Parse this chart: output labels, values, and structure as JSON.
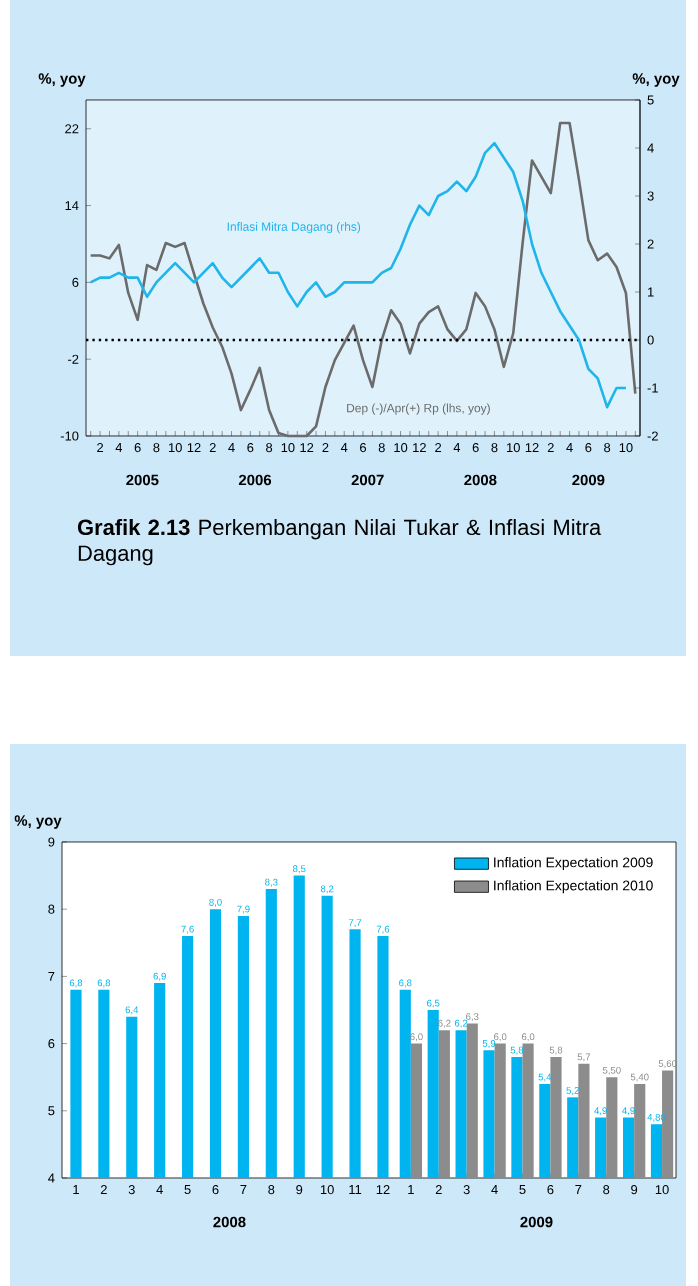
{
  "chart_data": [
    {
      "type": "line",
      "title": "**Grafik 2.13** Perkembangan Nilai Tukar & Inflasi Mitra Dagang",
      "ylabel": "%, yoy",
      "y2label": "%, yoy",
      "categories": [
        null,
        "2",
        null,
        "4",
        null,
        "6",
        null,
        "8",
        null,
        "10",
        null,
        "12",
        null,
        "2",
        null,
        "4",
        null,
        "6",
        null,
        "8",
        null,
        "10",
        null,
        "12",
        null,
        "2",
        null,
        "4",
        null,
        "6",
        null,
        "8",
        null,
        "10",
        null,
        "12",
        null,
        "2",
        null,
        "4",
        null,
        "6",
        null,
        "8",
        null,
        "10",
        null,
        "12",
        null,
        "2",
        null,
        "4",
        null,
        "6",
        null,
        "8",
        null,
        "10",
        null
      ],
      "ylim": [
        -10,
        25
      ],
      "yticks": [
        -10,
        -2,
        6,
        14,
        22
      ],
      "y2lim": [
        -2,
        5
      ],
      "y2ticks": [
        -2,
        -1,
        0,
        1,
        2,
        3,
        4,
        5
      ],
      "series": [
        {
          "name": "Dep (-)/Apr(+) Rp (lhs, yoy)",
          "color": "#6b6b6b",
          "values": [
            8.8,
            8.8,
            8.5,
            9.9,
            4.9,
            2.1,
            7.8,
            7.3,
            10.1,
            9.7,
            10.1,
            6.9,
            3.8,
            1.3,
            -0.7,
            -3.5,
            -7.3,
            -5.2,
            -2.9,
            -7.3,
            -9.7,
            -10,
            -10,
            -10,
            -9.0,
            -4.9,
            -2.1,
            -0.3,
            1.5,
            -2.1,
            -4.9,
            0,
            3.1,
            1.7,
            -1.4,
            1.7,
            2.9,
            3.5,
            1.1,
            -0.1,
            1.1,
            4.9,
            3.5,
            1.1,
            -2.8,
            0.7,
            10.1,
            18.7,
            17.0,
            15.3,
            22.6,
            22.6,
            16.7,
            10.4,
            8.3,
            9.0,
            7.6,
            4.9,
            -5.6
          ]
        },
        {
          "name": "Inflasi Mitra Dagang (rhs)",
          "color": "#1fb4ea",
          "axis": "y2",
          "values": [
            1.2,
            1.3,
            1.3,
            1.4,
            1.3,
            1.3,
            0.9,
            1.2,
            1.4,
            1.6,
            1.4,
            1.2,
            1.4,
            1.6,
            1.3,
            1.1,
            1.3,
            1.5,
            1.7,
            1.4,
            1.4,
            1.0,
            0.7,
            1.0,
            1.2,
            0.9,
            1.0,
            1.2,
            1.2,
            1.2,
            1.2,
            1.4,
            1.5,
            1.9,
            2.4,
            2.8,
            2.6,
            3.0,
            3.1,
            3.3,
            3.1,
            3.4,
            3.9,
            4.1,
            3.8,
            3.5,
            2.9,
            2.0,
            1.4,
            1.0,
            0.6,
            0.3,
            0.0,
            -0.6,
            -0.8,
            -1.4,
            -1.0,
            -1.0,
            null
          ]
        }
      ],
      "ref_lines": [
        {
          "axis": "y2",
          "value": 0,
          "color": "#000000",
          "line_style": "dotted"
        }
      ],
      "annotations": [
        "2005",
        "2006",
        "2007",
        "2008",
        "2009"
      ]
    },
    {
      "type": "bar",
      "ylabel": "%, yoy",
      "categories": [
        "1",
        "2",
        "3",
        "4",
        "5",
        "6",
        "7",
        "8",
        "9",
        "10",
        "11",
        "12",
        "1",
        "2",
        "3",
        "4",
        "5",
        "6",
        "7",
        "8",
        "9",
        "10"
      ],
      "ylim": [
        4,
        9
      ],
      "yticks": [
        4,
        5,
        6,
        7,
        8,
        9
      ],
      "legend": "top right",
      "series": [
        {
          "name": "Inflation Expectation 2009",
          "color": "#00b5ef",
          "values": [
            6.8,
            6.8,
            6.4,
            6.9,
            7.6,
            8.0,
            7.9,
            8.3,
            8.5,
            8.2,
            7.7,
            7.6,
            6.8,
            6.5,
            6.2,
            5.9,
            5.8,
            5.4,
            5.2,
            4.9,
            4.9,
            4.8
          ],
          "value_labels": [
            "6,8",
            "6,8",
            "6,4",
            "6,9",
            "7,6",
            "8,0",
            "7,9",
            "8,3",
            "8,5",
            "8,2",
            "7,7",
            "7,6",
            "6,8",
            "6,5",
            "6,2",
            "5,9",
            "5,8",
            "5,4",
            "5,2",
            "4,9",
            "4,9",
            "4,80"
          ]
        },
        {
          "name": "Inflation Expectation 2010",
          "color": "#8c8c8c",
          "values": [
            null,
            null,
            null,
            null,
            null,
            null,
            null,
            null,
            null,
            null,
            null,
            null,
            6.0,
            6.2,
            6.3,
            6.0,
            6.0,
            5.8,
            5.7,
            5.5,
            5.4,
            5.6
          ],
          "value_labels": [
            null,
            null,
            null,
            null,
            null,
            null,
            null,
            null,
            null,
            null,
            null,
            null,
            "6,0",
            "6,2",
            "6,3",
            "6,0",
            "6,0",
            "5,8",
            "5,7",
            "5,50",
            "5,40",
            "5,60"
          ]
        }
      ],
      "annotations": [
        "2008",
        "2009"
      ]
    }
  ]
}
